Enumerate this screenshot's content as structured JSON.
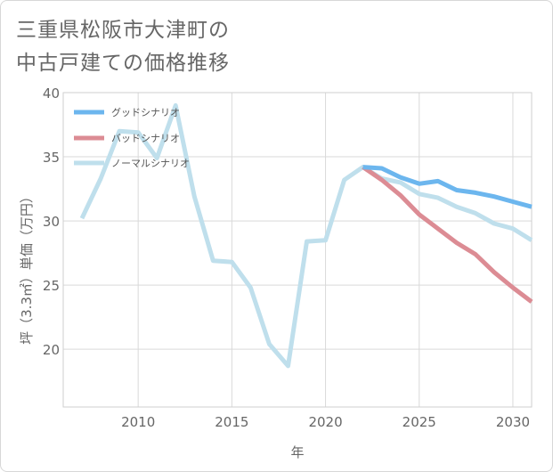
{
  "chart_data": {
    "type": "line",
    "title": "三重県松阪市大津町の\n中古戸建ての価格推移",
    "xlabel": "年",
    "ylabel": "坪（3.3㎡）単価（万円）",
    "xlim": [
      2006,
      2031
    ],
    "ylim": [
      15.5,
      40
    ],
    "x_ticks": [
      2010,
      2015,
      2020,
      2025,
      2030
    ],
    "y_ticks": [
      20,
      25,
      30,
      35,
      40
    ],
    "legend_position": "top-left",
    "series": [
      {
        "name": "グッドシナリオ",
        "color": "#6cb6ee",
        "x": [
          2022,
          2023,
          2024,
          2025,
          2026,
          2027,
          2028,
          2029,
          2030,
          2031
        ],
        "values": [
          34.2,
          34.1,
          33.4,
          32.9,
          33.1,
          32.4,
          32.2,
          31.9,
          31.5,
          31.1
        ]
      },
      {
        "name": "バッドシナリオ",
        "color": "#dc8c94",
        "x": [
          2022,
          2023,
          2024,
          2025,
          2026,
          2027,
          2028,
          2029,
          2030,
          2031
        ],
        "values": [
          34.2,
          33.2,
          32.0,
          30.5,
          29.4,
          28.3,
          27.4,
          26.0,
          24.8,
          23.7
        ]
      },
      {
        "name": "ノーマルシナリオ",
        "color": "#bfdfec",
        "x": [
          2007,
          2008,
          2009,
          2010,
          2011,
          2012,
          2013,
          2014,
          2015,
          2016,
          2017,
          2018,
          2019,
          2020,
          2021,
          2022,
          2023,
          2024,
          2025,
          2026,
          2027,
          2028,
          2029,
          2030,
          2031
        ],
        "values": [
          30.2,
          33.3,
          37.0,
          36.9,
          34.9,
          39.0,
          31.9,
          26.9,
          26.8,
          24.8,
          20.4,
          18.7,
          28.4,
          28.5,
          33.2,
          34.2,
          33.3,
          33.0,
          32.1,
          31.8,
          31.1,
          30.6,
          29.8,
          29.4,
          28.5
        ]
      }
    ]
  }
}
